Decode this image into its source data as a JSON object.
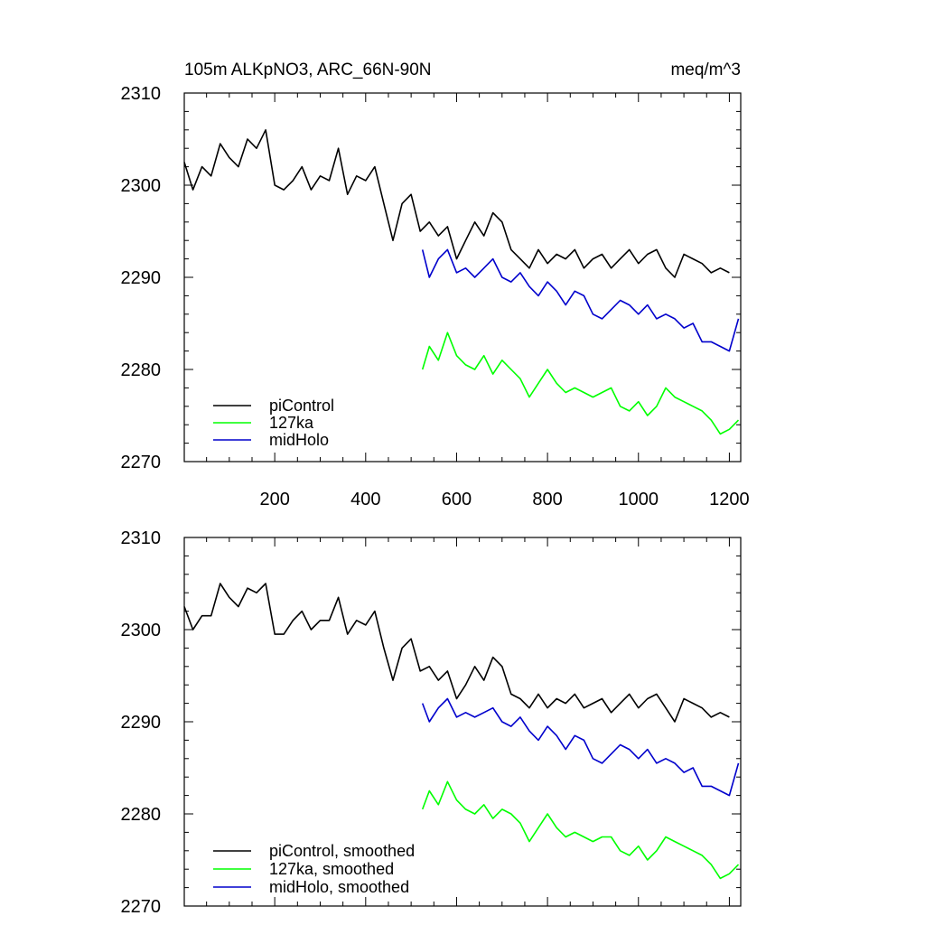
{
  "colors": {
    "piControl": "#000000",
    "127ka": "#00ff00",
    "midHolo": "#0000cc"
  },
  "chart_data": [
    {
      "type": "line",
      "title": "105m ALKpNO3, ARC_66N-90N",
      "units": "meq/m^3",
      "xlabel": "",
      "ylabel": "",
      "xlim": [
        1,
        1225
      ],
      "ylim": [
        2270,
        2310
      ],
      "xticks": [
        200,
        400,
        600,
        800,
        1000,
        1200
      ],
      "xtick_labels": [
        "200",
        "400",
        "600",
        "800",
        "1000",
        "1200"
      ],
      "yticks": [
        2270,
        2280,
        2290,
        2300,
        2310
      ],
      "ytick_labels": [
        "2270",
        "2280",
        "2290",
        "2300",
        "2310"
      ],
      "legend_position": "bottom-left",
      "series": [
        {
          "name": "piControl",
          "color": "#000000",
          "x": [
            1,
            20,
            40,
            60,
            80,
            100,
            120,
            140,
            160,
            180,
            200,
            220,
            240,
            260,
            280,
            300,
            320,
            340,
            360,
            380,
            400,
            420,
            440,
            460,
            480,
            500,
            520,
            540,
            560,
            580,
            600,
            620,
            640,
            660,
            680,
            700,
            720,
            740,
            760,
            780,
            800,
            820,
            840,
            860,
            880,
            900,
            920,
            940,
            960,
            980,
            1000,
            1020,
            1040,
            1060,
            1080,
            1100,
            1120,
            1140,
            1160,
            1180,
            1200
          ],
          "values": [
            2302.5,
            2299.5,
            2302,
            2301,
            2304.5,
            2303,
            2302,
            2305,
            2304,
            2306,
            2300,
            2299.5,
            2300.5,
            2302,
            2299.5,
            2301,
            2300.5,
            2304,
            2299,
            2301,
            2300.5,
            2302,
            2298,
            2294,
            2298,
            2299,
            2295,
            2296,
            2294.5,
            2295.5,
            2292,
            2294,
            2296,
            2294.5,
            2297,
            2296,
            2293,
            2292,
            2291,
            2293,
            2291.5,
            2292.5,
            2292,
            2293,
            2291,
            2292,
            2292.5,
            2291,
            2292,
            2293,
            2291.5,
            2292.5,
            2293,
            2291,
            2290,
            2292.5,
            2292,
            2291.5,
            2290.5,
            2291,
            2290.5
          ]
        },
        {
          "name": "127ka",
          "color": "#00ff00",
          "x": [
            525,
            540,
            560,
            580,
            600,
            620,
            640,
            660,
            680,
            700,
            720,
            740,
            760,
            780,
            800,
            820,
            840,
            860,
            880,
            900,
            920,
            940,
            960,
            980,
            1000,
            1020,
            1040,
            1060,
            1080,
            1100,
            1120,
            1140,
            1160,
            1180,
            1200,
            1220
          ],
          "values": [
            2280,
            2282.5,
            2281,
            2284,
            2281.5,
            2280.5,
            2280,
            2281.5,
            2279.5,
            2281,
            2280,
            2279,
            2277,
            2278.5,
            2280,
            2278.5,
            2277.5,
            2278,
            2277.5,
            2277,
            2277.5,
            2278,
            2276,
            2275.5,
            2276.5,
            2275,
            2276,
            2278,
            2277,
            2276.5,
            2276,
            2275.5,
            2274.5,
            2273,
            2273.5,
            2274.5
          ]
        },
        {
          "name": "midHolo",
          "color": "#0000cc",
          "x": [
            525,
            540,
            560,
            580,
            600,
            620,
            640,
            660,
            680,
            700,
            720,
            740,
            760,
            780,
            800,
            820,
            840,
            860,
            880,
            900,
            920,
            940,
            960,
            980,
            1000,
            1020,
            1040,
            1060,
            1080,
            1100,
            1120,
            1140,
            1160,
            1180,
            1200,
            1220
          ],
          "values": [
            2293,
            2290,
            2292,
            2293,
            2290.5,
            2291,
            2290,
            2291,
            2292,
            2290,
            2289.5,
            2290.5,
            2289,
            2288,
            2289.5,
            2288.5,
            2287,
            2288.5,
            2288,
            2286,
            2285.5,
            2286.5,
            2287.5,
            2287,
            2286,
            2287,
            2285.5,
            2286,
            2285.5,
            2284.5,
            2285,
            2283,
            2283,
            2282.5,
            2282,
            2285.5
          ]
        }
      ]
    },
    {
      "type": "line",
      "title": "",
      "units": "",
      "xlabel": "",
      "ylabel": "",
      "xlim": [
        1,
        1225
      ],
      "ylim": [
        2270,
        2310
      ],
      "xticks": [
        200,
        400,
        600,
        800,
        1000,
        1200
      ],
      "xtick_labels": [],
      "yticks": [
        2270,
        2280,
        2290,
        2300,
        2310
      ],
      "ytick_labels": [
        "2270",
        "2280",
        "2290",
        "2300",
        "2310"
      ],
      "legend_position": "bottom-left",
      "series": [
        {
          "name": "piControl, smoothed",
          "color": "#000000",
          "x": [
            1,
            20,
            40,
            60,
            80,
            100,
            120,
            140,
            160,
            180,
            200,
            220,
            240,
            260,
            280,
            300,
            320,
            340,
            360,
            380,
            400,
            420,
            440,
            460,
            480,
            500,
            520,
            540,
            560,
            580,
            600,
            620,
            640,
            660,
            680,
            700,
            720,
            740,
            760,
            780,
            800,
            820,
            840,
            860,
            880,
            900,
            920,
            940,
            960,
            980,
            1000,
            1020,
            1040,
            1060,
            1080,
            1100,
            1120,
            1140,
            1160,
            1180,
            1200
          ],
          "values": [
            2302.5,
            2300,
            2301.5,
            2301.5,
            2305,
            2303.5,
            2302.5,
            2304.5,
            2304,
            2305,
            2299.5,
            2299.5,
            2301,
            2302,
            2300,
            2301,
            2301,
            2303.5,
            2299.5,
            2301,
            2300.5,
            2302,
            2298,
            2294.5,
            2298,
            2299,
            2295.5,
            2296,
            2294.5,
            2295.5,
            2292.5,
            2294,
            2296,
            2294.5,
            2297,
            2296,
            2293,
            2292.5,
            2291.5,
            2293,
            2291.5,
            2292.5,
            2292,
            2293,
            2291.5,
            2292,
            2292.5,
            2291,
            2292,
            2293,
            2291.5,
            2292.5,
            2293,
            2291.5,
            2290,
            2292.5,
            2292,
            2291.5,
            2290.5,
            2291,
            2290.5
          ]
        },
        {
          "name": "127ka, smoothed",
          "color": "#00ff00",
          "x": [
            525,
            540,
            560,
            580,
            600,
            620,
            640,
            660,
            680,
            700,
            720,
            740,
            760,
            780,
            800,
            820,
            840,
            860,
            880,
            900,
            920,
            940,
            960,
            980,
            1000,
            1020,
            1040,
            1060,
            1080,
            1100,
            1120,
            1140,
            1160,
            1180,
            1200,
            1220
          ],
          "values": [
            2280.5,
            2282.5,
            2281,
            2283.5,
            2281.5,
            2280.5,
            2280,
            2281,
            2279.5,
            2280.5,
            2280,
            2279,
            2277,
            2278.5,
            2280,
            2278.5,
            2277.5,
            2278,
            2277.5,
            2277,
            2277.5,
            2277.5,
            2276,
            2275.5,
            2276.5,
            2275,
            2276,
            2277.5,
            2277,
            2276.5,
            2276,
            2275.5,
            2274.5,
            2273,
            2273.5,
            2274.5
          ]
        },
        {
          "name": "midHolo, smoothed",
          "color": "#0000cc",
          "x": [
            525,
            540,
            560,
            580,
            600,
            620,
            640,
            660,
            680,
            700,
            720,
            740,
            760,
            780,
            800,
            820,
            840,
            860,
            880,
            900,
            920,
            940,
            960,
            980,
            1000,
            1020,
            1040,
            1060,
            1080,
            1100,
            1120,
            1140,
            1160,
            1180,
            1200,
            1220
          ],
          "values": [
            2292,
            2290,
            2291.5,
            2292.5,
            2290.5,
            2291,
            2290.5,
            2291,
            2291.5,
            2290,
            2289.5,
            2290.5,
            2289,
            2288,
            2289.5,
            2288.5,
            2287,
            2288.5,
            2288,
            2286,
            2285.5,
            2286.5,
            2287.5,
            2287,
            2286,
            2287,
            2285.5,
            2286,
            2285.5,
            2284.5,
            2285,
            2283,
            2283,
            2282.5,
            2282,
            2285.5
          ]
        }
      ]
    }
  ]
}
